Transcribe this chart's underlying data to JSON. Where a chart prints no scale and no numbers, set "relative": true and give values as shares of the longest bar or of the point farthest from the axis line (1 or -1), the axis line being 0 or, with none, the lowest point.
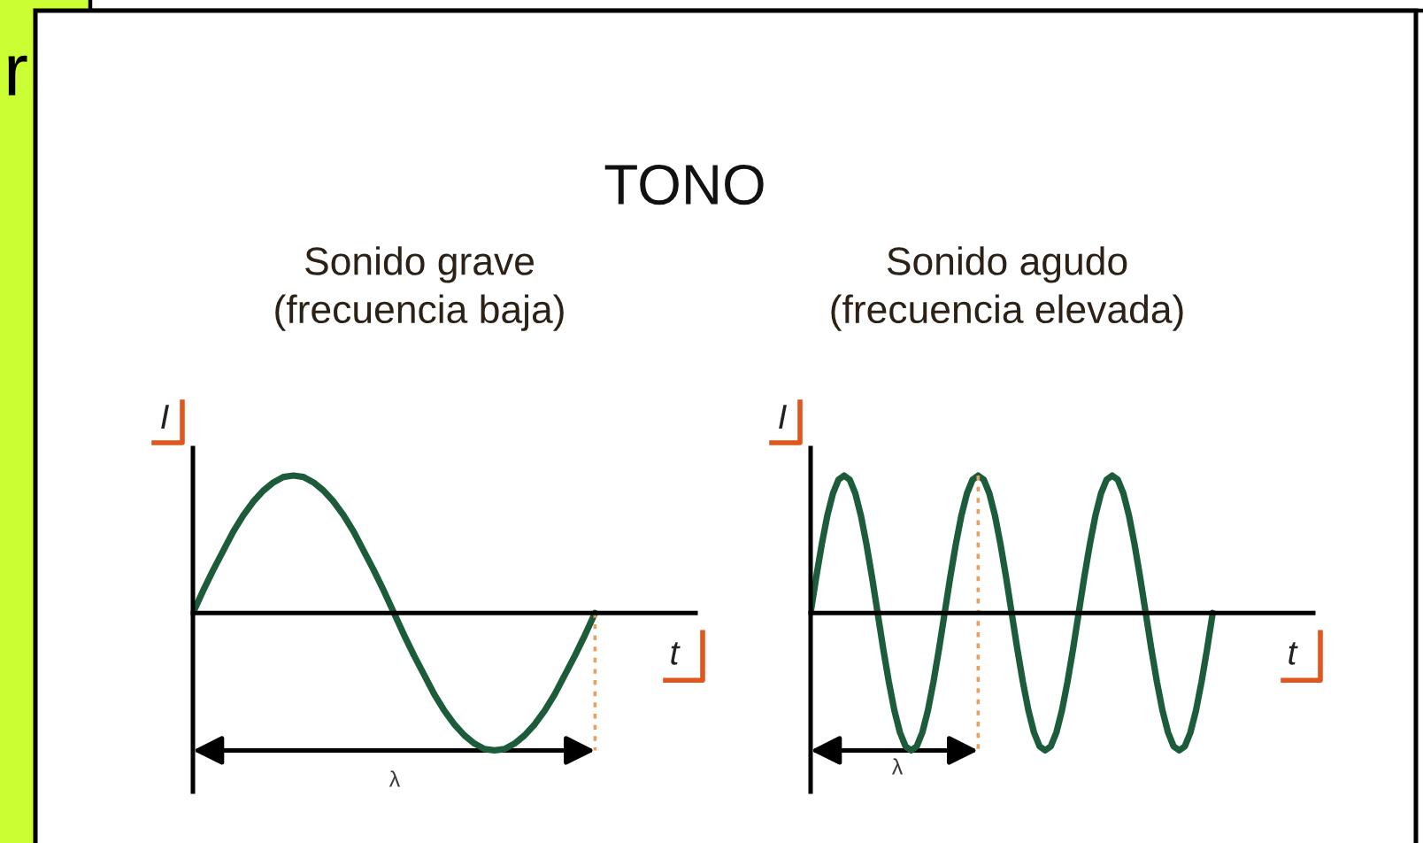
{
  "chart_data": [
    {
      "type": "line",
      "title": "TONO",
      "subtitle": "Sonido grave\n(frecuencia baja)",
      "xlabel": "t",
      "ylabel": "I",
      "relative": true,
      "categories": [
        null,
        null,
        null,
        null,
        null,
        null,
        null,
        null,
        null,
        null,
        null,
        null,
        null,
        null,
        null,
        null,
        null,
        null,
        null,
        null,
        null,
        null,
        null,
        null,
        null,
        null,
        null,
        null,
        null,
        null,
        null,
        null,
        null,
        null,
        null,
        null,
        null,
        null,
        null,
        null,
        null
      ],
      "series": [
        {
          "color": "#1d5c3b",
          "values": [
            0,
            0.16,
            0.31,
            0.45,
            0.59,
            0.71,
            0.81,
            0.89,
            0.95,
            0.99,
            1,
            0.99,
            0.95,
            0.89,
            0.81,
            0.71,
            0.59,
            0.45,
            0.31,
            0.16,
            0,
            -0.16,
            -0.31,
            -0.45,
            -0.59,
            -0.71,
            -0.81,
            -0.89,
            -0.95,
            -0.99,
            -1,
            -0.99,
            -0.95,
            -0.89,
            -0.81,
            -0.71,
            -0.59,
            -0.45,
            -0.31,
            -0.16,
            0
          ]
        }
      ],
      "annotations": [
        "λ",
        "r"
      ]
    },
    {
      "type": "line",
      "subtitle": "Sonido agudo\n(frecuencia elevada)",
      "xlabel": "t",
      "ylabel": "I",
      "relative": true,
      "categories": [
        null,
        null,
        null,
        null,
        null,
        null,
        null,
        null,
        null,
        null,
        null,
        null,
        null,
        null,
        null,
        null,
        null,
        null,
        null,
        null,
        null,
        null,
        null,
        null,
        null,
        null,
        null,
        null,
        null,
        null,
        null,
        null,
        null,
        null,
        null,
        null,
        null,
        null,
        null,
        null,
        null,
        null,
        null,
        null,
        null,
        null,
        null,
        null,
        null,
        null,
        null,
        null,
        null,
        null,
        null,
        null,
        null,
        null,
        null,
        null,
        null,
        null,
        null,
        null,
        null,
        null,
        null,
        null,
        null,
        null,
        null,
        null,
        null
      ],
      "series": [
        {
          "color": "#1d5c3b",
          "values": [
            0,
            0.26,
            0.5,
            0.71,
            0.87,
            0.97,
            1,
            0.97,
            0.87,
            0.71,
            0.5,
            0.26,
            0,
            -0.26,
            -0.5,
            -0.71,
            -0.87,
            -0.97,
            -1,
            -0.97,
            -0.87,
            -0.71,
            -0.5,
            -0.26,
            0,
            0.26,
            0.5,
            0.71,
            0.87,
            0.97,
            1,
            0.97,
            0.87,
            0.71,
            0.5,
            0.26,
            0,
            -0.26,
            -0.5,
            -0.71,
            -0.87,
            -0.97,
            -1,
            -0.97,
            -0.87,
            -0.71,
            -0.5,
            -0.26,
            0,
            0.26,
            0.5,
            0.71,
            0.87,
            0.97,
            1,
            0.97,
            0.87,
            0.71,
            0.5,
            0.26,
            0,
            -0.26,
            -0.5,
            -0.71,
            -0.87,
            -0.97,
            -1,
            -0.97,
            -0.87,
            -0.71,
            -0.5,
            -0.26,
            0
          ]
        }
      ],
      "annotations": [
        "λ"
      ]
    }
  ]
}
